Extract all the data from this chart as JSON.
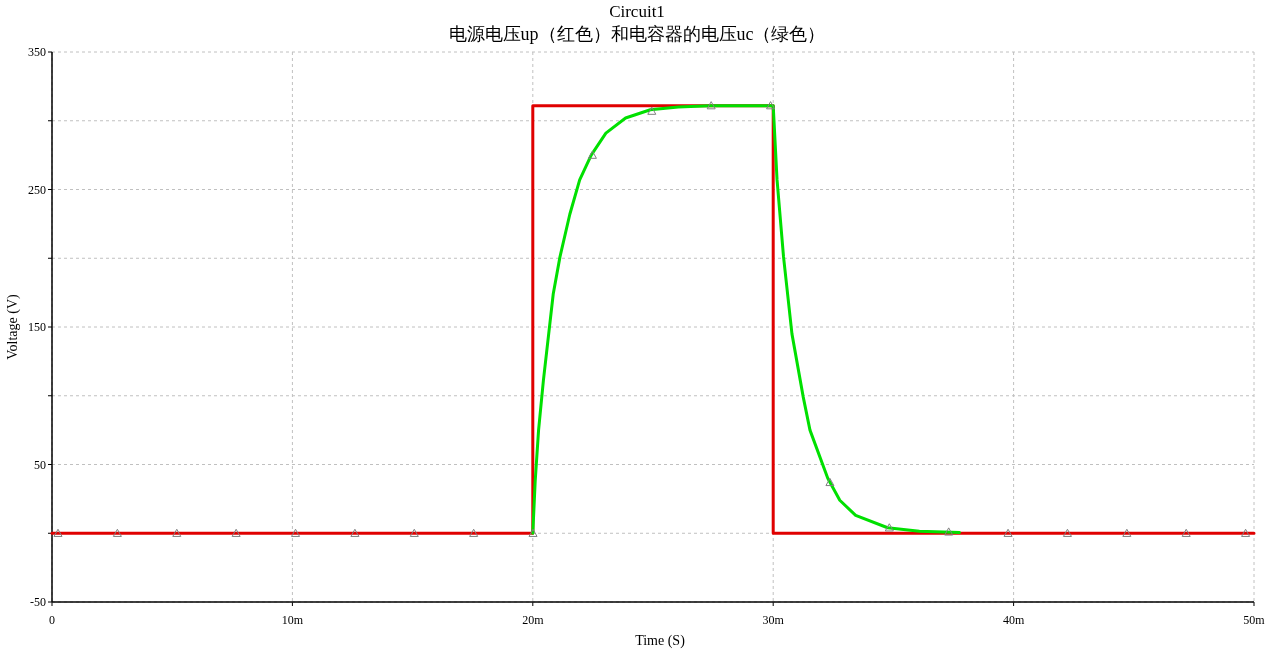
{
  "chart_data": {
    "type": "line",
    "title": "Circuit1",
    "subtitle": "电源电压up（红色）和电容器的电压uc（绿色）",
    "xlabel": "Time (S)",
    "ylabel": "Voltage (V)",
    "xlim": [
      0,
      50
    ],
    "xticks": [
      0,
      {
        "value": 10,
        "label": "10m"
      },
      {
        "value": 20,
        "label": "20m"
      },
      {
        "value": 30,
        "label": "30m"
      },
      {
        "value": 40,
        "label": "40m"
      },
      {
        "value": 50,
        "label": "50m"
      }
    ],
    "ylim": [
      -50,
      350
    ],
    "yticks": [
      -50,
      {
        "value": 0,
        "label": null
      },
      50,
      {
        "value": 100,
        "label": null
      },
      150,
      {
        "value": 200,
        "label": null
      },
      250,
      {
        "value": 300,
        "label": null
      },
      350
    ],
    "grid": true,
    "series": [
      {
        "color": "#e00000",
        "x": [
          0,
          20,
          20,
          30,
          30,
          50
        ],
        "values": [
          0,
          0,
          311,
          311,
          0,
          0
        ]
      },
      {
        "color": "#00e000",
        "x": [
          20,
          20.1,
          20.24,
          20.44,
          20.85,
          21.13,
          21.54,
          21.95,
          22.43,
          23.04,
          23.86,
          24.89,
          26.05,
          27.35,
          30,
          30.16,
          30.43,
          30.78,
          31.25,
          31.53,
          32.27,
          32.77,
          33.43,
          34.76,
          36.08,
          37.75
        ],
        "values": [
          0,
          38,
          75,
          111,
          174,
          201,
          232,
          257,
          275,
          291,
          302,
          308,
          310,
          311,
          311,
          257,
          201,
          145,
          99,
          75,
          40,
          24,
          13,
          4,
          1.5,
          0.6
        ]
      },
      {
        "type": "scatter",
        "marker": "triangle",
        "color": "#808080",
        "x": [
          0.25,
          2.72,
          5.19,
          7.66,
          10.13,
          12.6,
          15.07,
          17.54,
          20.01,
          22.48,
          24.95,
          27.42,
          29.89,
          32.36,
          34.83,
          37.3,
          39.77,
          42.24,
          44.71,
          47.18,
          49.65
        ],
        "values": [
          0,
          0,
          0,
          0,
          0,
          0,
          0,
          0,
          0,
          275,
          307,
          311,
          311,
          37,
          4,
          1,
          0,
          0,
          0,
          0,
          0
        ]
      }
    ]
  }
}
